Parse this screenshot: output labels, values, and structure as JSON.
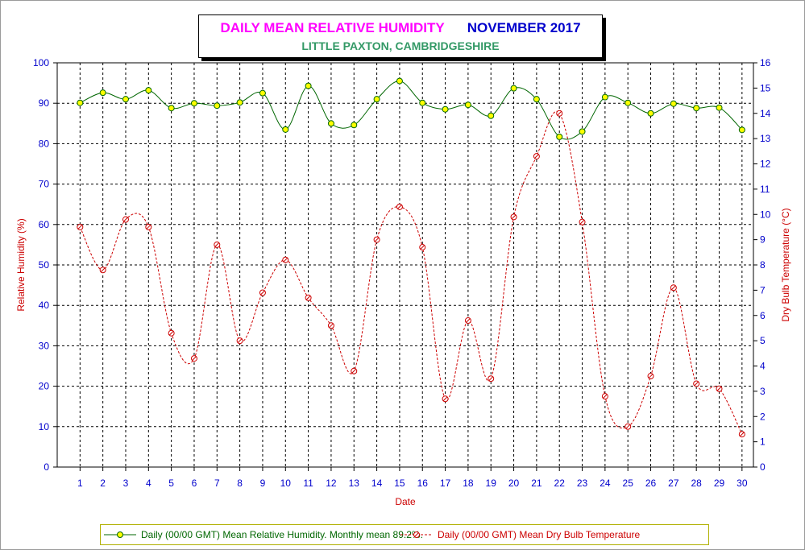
{
  "title": {
    "main": "DAILY MEAN RELATIVE HUMIDITY",
    "month": "NOVEMBER 2017",
    "subtitle": "LITTLE PAXTON, CAMBRIDGESHIRE"
  },
  "colors": {
    "title_main": "#ff00ff",
    "title_month": "#0000cc",
    "subtitle": "#339966",
    "axis_label": "#cc0000",
    "tick_label": "#0000cc",
    "rh_line": "#006600",
    "rh_marker": "#ffff00",
    "temp_line": "#cc0000"
  },
  "legend": {
    "rh": "Daily (00/00 GMT) Mean Relative Humidity. Monthly mean 89.2%.",
    "temp": "Daily (00/00 GMT) Mean Dry Bulb Temperature"
  },
  "chart_data": {
    "type": "line",
    "xlabel": "Date",
    "ylabel_left": "Relative Humidity (%)",
    "ylabel_right": "Dry Bulb Temperature (°C)",
    "x": [
      1,
      2,
      3,
      4,
      5,
      6,
      7,
      8,
      9,
      10,
      11,
      12,
      13,
      14,
      15,
      16,
      17,
      18,
      19,
      20,
      21,
      22,
      23,
      24,
      25,
      26,
      27,
      28,
      29,
      30
    ],
    "ylim_left": [
      0,
      100
    ],
    "yticks_left": [
      0,
      10,
      20,
      30,
      40,
      50,
      60,
      70,
      80,
      90,
      100
    ],
    "ylim_right": [
      0,
      16
    ],
    "yticks_right": [
      0,
      1,
      2,
      3,
      4,
      5,
      6,
      7,
      8,
      9,
      10,
      11,
      12,
      13,
      14,
      15,
      16
    ],
    "grid": true,
    "legend_position": "bottom",
    "series": [
      {
        "name": "Daily (00/00 GMT) Mean Relative Humidity. Monthly mean 89.2%.",
        "axis": "left",
        "style": "solid",
        "values": [
          90.1,
          92.6,
          91.0,
          93.2,
          88.8,
          90.0,
          89.4,
          90.2,
          92.5,
          83.5,
          94.3,
          85.0,
          84.6,
          91.0,
          95.5,
          90.1,
          88.5,
          89.6,
          86.9,
          93.7,
          91.0,
          81.7,
          83.0,
          91.5,
          90.1,
          87.5,
          89.9,
          88.8,
          88.9,
          83.4
        ]
      },
      {
        "name": "Daily (00/00 GMT) Mean Dry Bulb Temperature",
        "axis": "right",
        "style": "dashed",
        "values": [
          9.5,
          7.8,
          9.8,
          9.5,
          5.3,
          4.3,
          8.8,
          5.0,
          6.9,
          8.2,
          6.7,
          5.6,
          3.8,
          9.0,
          10.3,
          8.7,
          2.7,
          5.8,
          3.5,
          9.9,
          12.3,
          14.0,
          9.7,
          2.8,
          1.6,
          3.6,
          7.1,
          3.3,
          3.1,
          1.3
        ]
      }
    ]
  }
}
